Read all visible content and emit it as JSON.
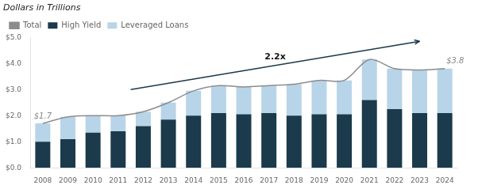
{
  "chart_data": {
    "type": "bar",
    "subtitle": "Dollars in Trillions",
    "categories": [
      "2008",
      "2009",
      "2010",
      "2011",
      "2012",
      "2013",
      "2014",
      "2015",
      "2016",
      "2017",
      "2018",
      "2019",
      "2020",
      "2021",
      "2022",
      "2023",
      "2024"
    ],
    "series": [
      {
        "name": "High Yield",
        "color": "#1b3a4b",
        "type": "bar",
        "values": [
          1.0,
          1.1,
          1.35,
          1.4,
          1.6,
          1.85,
          2.0,
          2.1,
          2.05,
          2.1,
          2.0,
          2.05,
          2.05,
          2.6,
          2.25,
          2.1,
          2.1
        ]
      },
      {
        "name": "Leveraged Loans",
        "color": "#b8d4e8",
        "type": "bar",
        "values": [
          0.7,
          0.85,
          0.65,
          0.6,
          0.55,
          0.65,
          0.95,
          1.05,
          1.05,
          1.05,
          1.2,
          1.3,
          1.3,
          1.55,
          1.55,
          1.65,
          1.7
        ]
      },
      {
        "name": "Total",
        "color": "#8c8c8c",
        "type": "line",
        "values": [
          1.7,
          1.95,
          2.0,
          2.0,
          2.15,
          2.5,
          2.95,
          3.15,
          3.1,
          3.15,
          3.2,
          3.35,
          3.35,
          4.15,
          3.8,
          3.75,
          3.8
        ]
      }
    ],
    "stacked": true,
    "ylim": [
      0,
      5.0
    ],
    "yticks": [
      {
        "value": 0.0,
        "label": "$0.0"
      },
      {
        "value": 1.0,
        "label": "$1.0"
      },
      {
        "value": 2.0,
        "label": "$2.0"
      },
      {
        "value": 3.0,
        "label": "$3.0"
      },
      {
        "value": 4.0,
        "label": "$4.0"
      },
      {
        "value": 5.0,
        "label": "$5.0"
      }
    ],
    "grid": false,
    "legend": "upper left",
    "annotations": [
      "$1.7",
      "2.2x",
      "$3.8"
    ],
    "arrow_color": "#1b3a4b"
  }
}
